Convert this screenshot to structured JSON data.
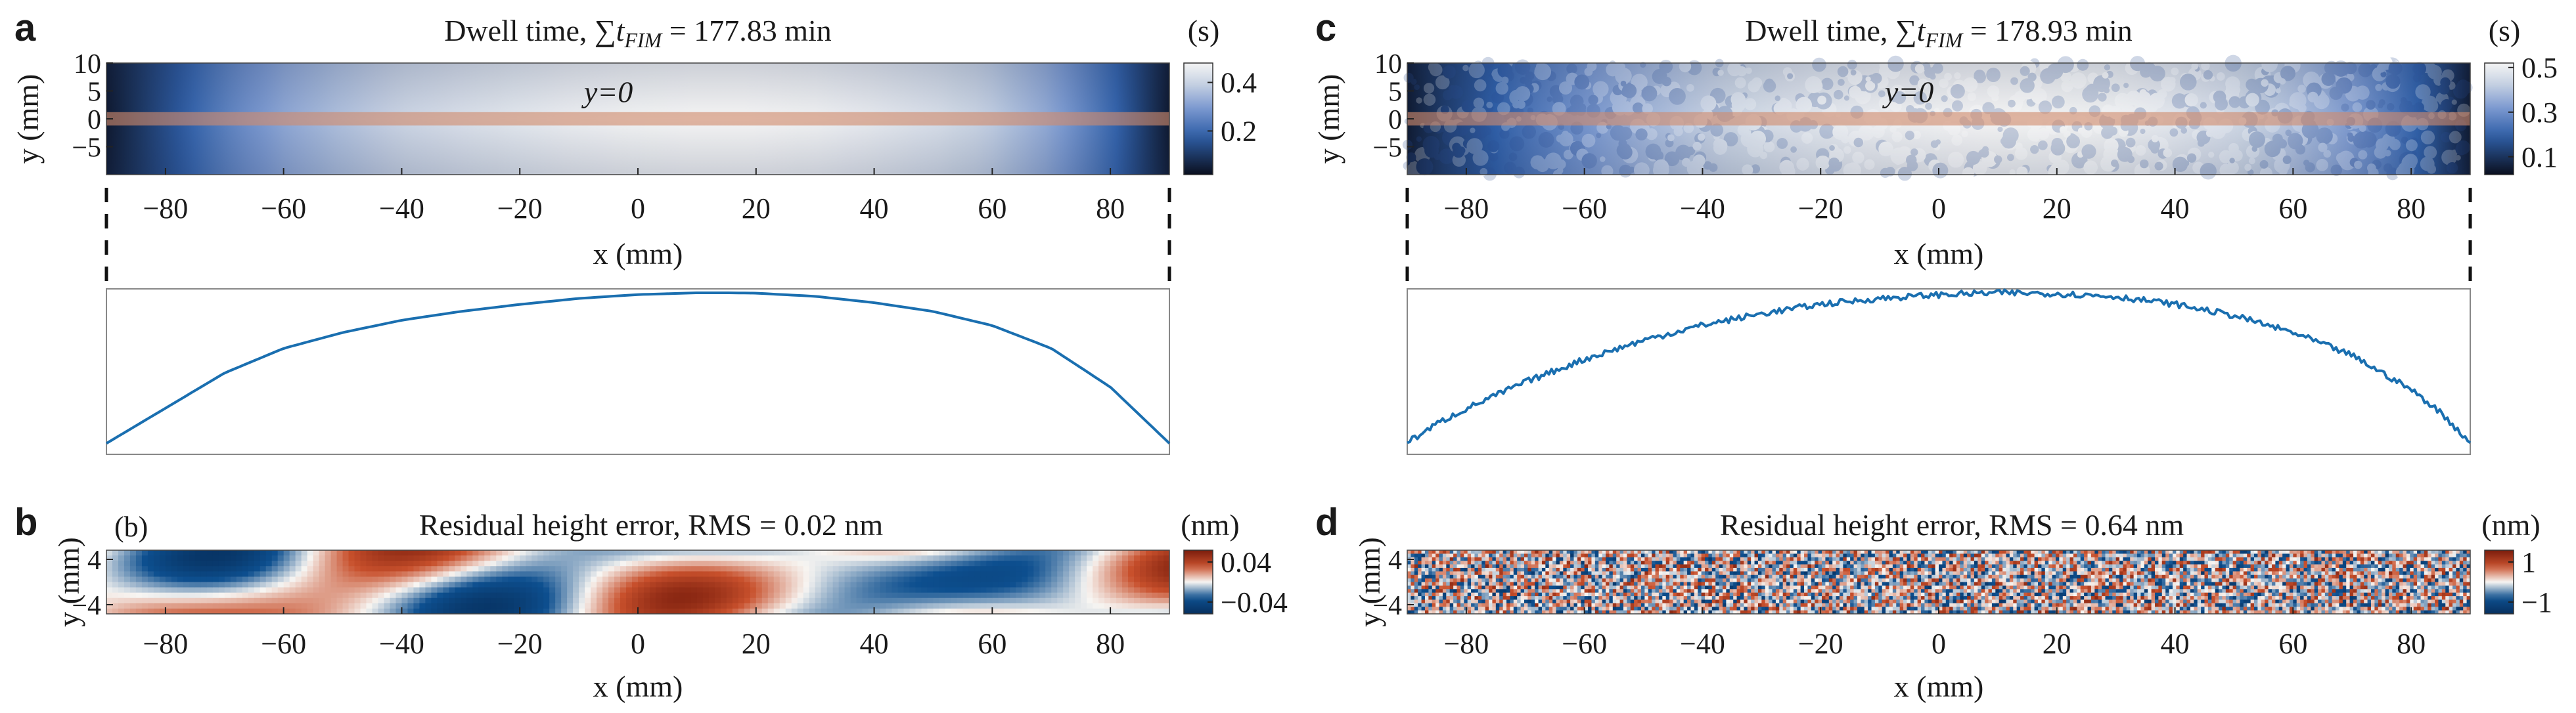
{
  "chart_data": [
    {
      "panel": "a",
      "type": "heatmap",
      "title": "Dwell time, ∑t_FIM = 177.83 min",
      "title_parts": [
        "Dwell time, ∑",
        "t",
        "FIM",
        " = 177.83 min"
      ],
      "xlabel": "x (mm)",
      "ylabel": "y (mm)",
      "x_ticks": [
        -80,
        -60,
        -40,
        -20,
        0,
        20,
        40,
        60,
        80
      ],
      "y_ticks": [
        10,
        5,
        0,
        -5
      ],
      "xlim": [
        -90,
        90
      ],
      "ylim": [
        -10,
        10
      ],
      "colorbar": {
        "unit": "(s)",
        "ticks": [
          0.4,
          0.2
        ],
        "range": [
          0.02,
          0.48
        ],
        "colormap": "black-blue-white"
      },
      "annotation": "y=0",
      "line_profile": {
        "x": [
          -90,
          -80,
          -70,
          -60,
          -50,
          -40,
          -30,
          -20,
          -10,
          0,
          10,
          15,
          20,
          30,
          40,
          50,
          60,
          70,
          80,
          90
        ],
        "y": [
          0.02,
          0.12,
          0.22,
          0.29,
          0.335,
          0.37,
          0.395,
          0.415,
          0.432,
          0.443,
          0.448,
          0.448,
          0.447,
          0.438,
          0.42,
          0.395,
          0.355,
          0.29,
          0.18,
          0.02
        ],
        "noise": 0
      }
    },
    {
      "panel": "b",
      "type": "heatmap",
      "title": "Residual height error, RMS = 0.02 nm",
      "sublabel": "(b)",
      "xlabel": "x (mm)",
      "ylabel": "y (mm)",
      "x_ticks": [
        -80,
        -60,
        -40,
        -20,
        0,
        20,
        40,
        60,
        80
      ],
      "y_ticks": [
        4,
        -4
      ],
      "xlim": [
        -90,
        90
      ],
      "colorbar": {
        "unit": "(nm)",
        "ticks": [
          0.04,
          -0.04
        ],
        "colormap": "blue-white-red"
      }
    },
    {
      "panel": "c",
      "type": "heatmap",
      "title": "Dwell time, ∑t_FIM = 178.93 min",
      "title_parts": [
        "Dwell time, ∑",
        "t",
        "FIM",
        " = 178.93 min"
      ],
      "xlabel": "x (mm)",
      "ylabel": "y (mm)",
      "x_ticks": [
        -80,
        -60,
        -40,
        -20,
        0,
        20,
        40,
        60,
        80
      ],
      "y_ticks": [
        10,
        5,
        0,
        -5
      ],
      "xlim": [
        -90,
        90
      ],
      "ylim": [
        -10,
        10
      ],
      "colorbar": {
        "unit": "(s)",
        "ticks": [
          0.5,
          0.3,
          0.1
        ],
        "range": [
          0.02,
          0.52
        ],
        "colormap": "black-blue-white"
      },
      "annotation": "y=0",
      "line_profile": {
        "x": [
          -90,
          -85,
          -80,
          -70,
          -60,
          -50,
          -40,
          -30,
          -20,
          -10,
          0,
          10,
          20,
          30,
          40,
          50,
          60,
          70,
          80,
          85,
          90
        ],
        "y": [
          0.02,
          0.07,
          0.11,
          0.18,
          0.24,
          0.29,
          0.33,
          0.36,
          0.385,
          0.4,
          0.41,
          0.415,
          0.413,
          0.405,
          0.385,
          0.355,
          0.31,
          0.25,
          0.16,
          0.1,
          0.02
        ],
        "noise": 0.008
      }
    },
    {
      "panel": "d",
      "type": "heatmap",
      "title": "Residual height error, RMS = 0.64 nm",
      "xlabel": "x (mm)",
      "ylabel": "y (mm)",
      "x_ticks": [
        -80,
        -60,
        -40,
        -20,
        0,
        20,
        40,
        60,
        80
      ],
      "y_ticks": [
        4,
        -4
      ],
      "xlim": [
        -90,
        90
      ],
      "colorbar": {
        "unit": "(nm)",
        "ticks": [
          1,
          -1
        ],
        "colormap": "blue-white-red"
      }
    }
  ],
  "colors": {
    "profile_line": "#1a6fb0",
    "strip": "#d08a6c",
    "dwell_dark": "#0a0f1e",
    "dwell_blue": "#3f6fc0",
    "dwell_light": "#f4f4f4",
    "err_red": "#b5391f",
    "err_blue": "#0d4f8f"
  }
}
